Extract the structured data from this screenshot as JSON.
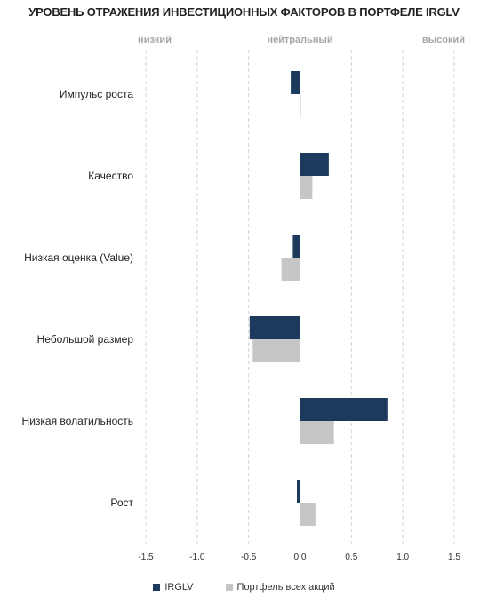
{
  "chart_data": {
    "type": "bar",
    "orientation": "horizontal",
    "title": "УРОВЕНЬ ОТРАЖЕНИЯ ИНВЕСТИЦИОННЫХ ФАКТОРОВ В ПОРТФЕЛЕ IRGLV",
    "scale_labels": [
      "низкий",
      "нейтральный",
      "высокий"
    ],
    "categories": [
      "Импульс роста",
      "Качество",
      "Низкая оценка (Value)",
      "Небольшой размер",
      "Низкая волатильность",
      "Рост"
    ],
    "series": [
      {
        "name": "IRGLV",
        "color": "#1b3a5c",
        "values": [
          -0.09,
          0.28,
          -0.07,
          -0.49,
          0.85,
          -0.03
        ]
      },
      {
        "name": "Портфель всех акций",
        "color": "#c6c6c6",
        "values": [
          0.0,
          0.12,
          -0.18,
          -0.46,
          0.33,
          0.15
        ]
      }
    ],
    "xlim": [
      -1.5,
      1.5
    ],
    "xticks": [
      -1.5,
      -1.0,
      -0.5,
      0.0,
      0.5,
      1.0,
      1.5
    ],
    "xtick_labels": [
      "-1.5",
      "-1.0",
      "-0.5",
      "0.0",
      "0.5",
      "1.0",
      "1.5"
    ],
    "grid": "vertical-dashed",
    "legend": "bottom"
  }
}
